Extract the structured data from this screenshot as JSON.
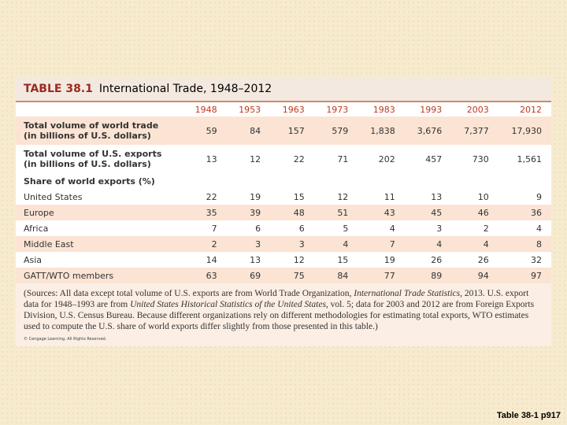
{
  "table": {
    "label": "TABLE 38.1",
    "title": "International Trade, 1948–2012",
    "columns": [
      "1948",
      "1953",
      "1963",
      "1973",
      "1983",
      "1993",
      "2003",
      "2012"
    ],
    "rows": [
      {
        "label": "Total volume of world trade",
        "sublabel": "(in billions of U.S. dollars)",
        "cells": [
          "59",
          "84",
          "157",
          "579",
          "1,838",
          "3,676",
          "7,377",
          "17,930"
        ]
      },
      {
        "label": "Total volume of U.S. exports",
        "sublabel": "(in billions of U.S. dollars)",
        "cells": [
          "13",
          "12",
          "22",
          "71",
          "202",
          "457",
          "730",
          "1,561"
        ]
      },
      {
        "label": "Share of world exports (%)",
        "cells": []
      },
      {
        "label": "United States",
        "cells": [
          "22",
          "19",
          "15",
          "12",
          "11",
          "13",
          "10",
          "9"
        ]
      },
      {
        "label": "Europe",
        "cells": [
          "35",
          "39",
          "48",
          "51",
          "43",
          "45",
          "46",
          "36"
        ]
      },
      {
        "label": "Africa",
        "cells": [
          "7",
          "6",
          "6",
          "5",
          "4",
          "3",
          "2",
          "4"
        ]
      },
      {
        "label": "Middle East",
        "cells": [
          "2",
          "3",
          "3",
          "4",
          "7",
          "4",
          "4",
          "8"
        ]
      },
      {
        "label": "Asia",
        "cells": [
          "14",
          "13",
          "12",
          "15",
          "19",
          "26",
          "26",
          "32"
        ]
      },
      {
        "label": "GATT/WTO members",
        "cells": [
          "63",
          "69",
          "75",
          "84",
          "77",
          "89",
          "94",
          "97"
        ]
      }
    ],
    "note": [
      {
        "text": "(Sources: All data except total volume of U.S. exports are from World Trade Organization, "
      },
      {
        "text": "International Trade Statistics",
        "italic": true
      },
      {
        "text": ", 2013. U.S. export data for 1948–1993 are from "
      },
      {
        "text": "United States Historical Statistics of the United States",
        "italic": true
      },
      {
        "text": ", vol. 5; data for 2003 and 2012 are from Foreign Exports Division, U.S. Census Bureau. Because different organizations rely on different methodologies for estimating total exports, WTO estimates used to compute the U.S. share of world exports differ slightly from those presented in this table.)"
      }
    ],
    "copyright": "© Cengage Learning. All Rights Reserved."
  },
  "footer": "Table 38-1 p917"
}
